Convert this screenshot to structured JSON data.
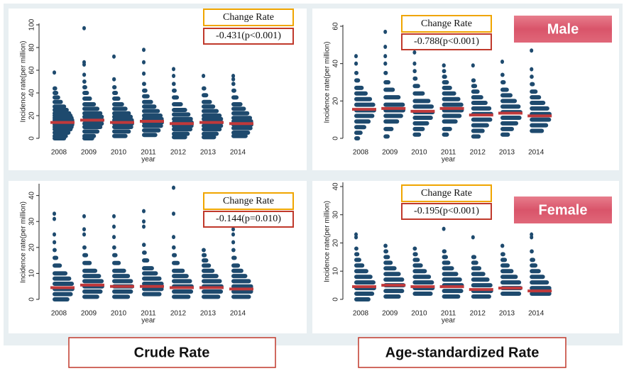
{
  "chart_data": [
    {
      "type": "strip",
      "ylabel": "Incidence rate(per million)",
      "xlabel": "year",
      "categories": [
        "2008",
        "2009",
        "2010",
        "2011",
        "2012",
        "2013",
        "2014"
      ],
      "ylim": [
        0,
        100
      ],
      "yticks": [
        0,
        20,
        40,
        60,
        80,
        100
      ],
      "dot_color": "#1e4a6e",
      "median_color": "#c0393b",
      "medians": [
        14,
        16,
        14,
        15,
        13,
        14,
        13
      ],
      "points": [
        [
          58,
          44,
          40,
          36,
          32,
          28,
          25,
          22,
          20,
          18,
          16,
          14,
          12,
          10,
          8,
          5,
          2,
          0
        ],
        [
          97,
          67,
          65,
          56,
          50,
          45,
          40,
          35,
          30,
          26,
          22,
          19,
          16,
          13,
          10,
          6,
          2,
          0
        ],
        [
          72,
          52,
          45,
          40,
          35,
          30,
          26,
          22,
          19,
          16,
          13,
          10,
          6,
          2
        ],
        [
          78,
          67,
          57,
          48,
          42,
          37,
          32,
          28,
          24,
          20,
          17,
          14,
          11,
          7,
          3
        ],
        [
          61,
          55,
          48,
          42,
          36,
          30,
          25,
          21,
          17,
          14,
          11,
          8,
          4,
          1
        ],
        [
          55,
          44,
          38,
          32,
          28,
          24,
          20,
          17,
          14,
          11,
          8,
          4,
          1
        ],
        [
          55,
          52,
          48,
          42,
          36,
          30,
          26,
          22,
          18,
          15,
          12,
          9,
          5,
          2
        ]
      ],
      "annotation_title": "Change Rate",
      "annotation_value": "-0.431(p<0.001)"
    },
    {
      "type": "strip",
      "ylabel": "Incidence rate(per million)",
      "xlabel": "year",
      "categories": [
        "2008",
        "2009",
        "2010",
        "2011",
        "2012",
        "2013",
        "2014"
      ],
      "ylim": [
        0,
        60
      ],
      "yticks": [
        0,
        20,
        40,
        60
      ],
      "dot_color": "#1e4a6e",
      "median_color": "#c0393b",
      "medians": [
        15.5,
        16,
        14.5,
        16,
        12.5,
        13.5,
        12
      ],
      "points": [
        [
          44,
          40,
          35,
          31,
          27,
          24,
          21,
          18,
          15,
          12,
          9,
          6,
          3,
          0
        ],
        [
          57,
          49,
          44,
          40,
          35,
          30,
          26,
          22,
          18,
          15,
          12,
          9,
          5,
          1
        ],
        [
          46,
          40,
          36,
          32,
          28,
          24,
          20,
          17,
          14,
          11,
          8,
          5,
          2
        ],
        [
          39,
          36,
          33,
          30,
          27,
          24,
          21,
          18,
          15,
          12,
          9,
          5,
          2
        ],
        [
          39,
          31,
          28,
          25,
          22,
          19,
          16,
          13,
          10,
          7,
          4,
          1
        ],
        [
          41,
          34,
          30,
          26,
          23,
          20,
          17,
          14,
          11,
          8,
          5,
          2
        ],
        [
          47,
          37,
          33,
          29,
          25,
          22,
          19,
          16,
          13,
          10,
          7,
          4
        ]
      ],
      "annotation_title": "Change Rate",
      "annotation_value": "-0.788(p<0.001)"
    },
    {
      "type": "strip",
      "ylabel": "Incidence rate(per million)",
      "xlabel": "year",
      "categories": [
        "2008",
        "2009",
        "2010",
        "2011",
        "2012",
        "2013",
        "2014"
      ],
      "ylim": [
        0,
        44
      ],
      "yticks": [
        0,
        10,
        20,
        30,
        40
      ],
      "dot_color": "#1e4a6e",
      "median_color": "#c0393b",
      "medians": [
        4.5,
        5.5,
        5,
        5,
        4.5,
        4.5,
        4
      ],
      "points": [
        [
          33,
          31,
          25,
          22,
          19,
          16,
          13,
          10,
          8,
          6,
          4,
          2,
          0
        ],
        [
          32,
          27,
          25,
          20,
          17,
          14,
          11,
          9,
          7,
          5,
          3,
          1
        ],
        [
          32,
          28,
          24,
          20,
          17,
          14,
          11,
          9,
          7,
          5,
          3,
          1
        ],
        [
          34,
          30,
          28,
          21,
          18,
          15,
          12,
          10,
          8,
          6,
          4,
          2
        ],
        [
          43,
          33,
          24,
          20,
          17,
          14,
          11,
          9,
          7,
          5,
          3,
          1
        ],
        [
          19,
          17,
          15,
          13,
          11,
          9,
          7,
          5,
          3,
          1
        ],
        [
          29,
          27,
          25,
          22,
          19,
          16,
          13,
          11,
          9,
          7,
          5,
          3,
          1
        ]
      ],
      "annotation_title": "Change Rate",
      "annotation_value": "-0.144(p=0.010)"
    },
    {
      "type": "strip",
      "ylabel": "Incidence rate(per million)",
      "xlabel": "year",
      "categories": [
        "2008",
        "2009",
        "2010",
        "2011",
        "2012",
        "2013",
        "2014"
      ],
      "ylim": [
        0,
        41
      ],
      "yticks": [
        0,
        10,
        20,
        30,
        40
      ],
      "dot_color": "#1e4a6e",
      "median_color": "#c0393b",
      "medians": [
        4.5,
        5,
        4.5,
        4.5,
        3.5,
        4,
        3
      ],
      "points": [
        [
          23,
          22,
          18,
          16,
          14,
          12,
          10,
          8,
          6,
          4,
          2,
          0
        ],
        [
          19,
          17,
          15,
          13,
          11,
          9,
          7,
          5,
          3,
          1
        ],
        [
          18,
          16,
          14,
          12,
          10,
          8,
          6,
          4,
          2
        ],
        [
          25,
          17,
          15,
          13,
          11,
          9,
          7,
          5,
          3,
          1
        ],
        [
          22,
          15,
          13,
          11,
          9,
          7,
          5,
          3,
          1
        ],
        [
          19,
          16,
          14,
          12,
          10,
          8,
          6,
          4,
          2
        ],
        [
          23,
          22,
          17,
          14,
          12,
          10,
          8,
          6,
          4,
          2
        ]
      ],
      "annotation_title": "Change Rate",
      "annotation_value": "-0.195(p<0.001)"
    }
  ],
  "labels": {
    "male": "Male",
    "female": "Female",
    "crude": "Crude Rate",
    "age": "Age-standardized Rate"
  }
}
